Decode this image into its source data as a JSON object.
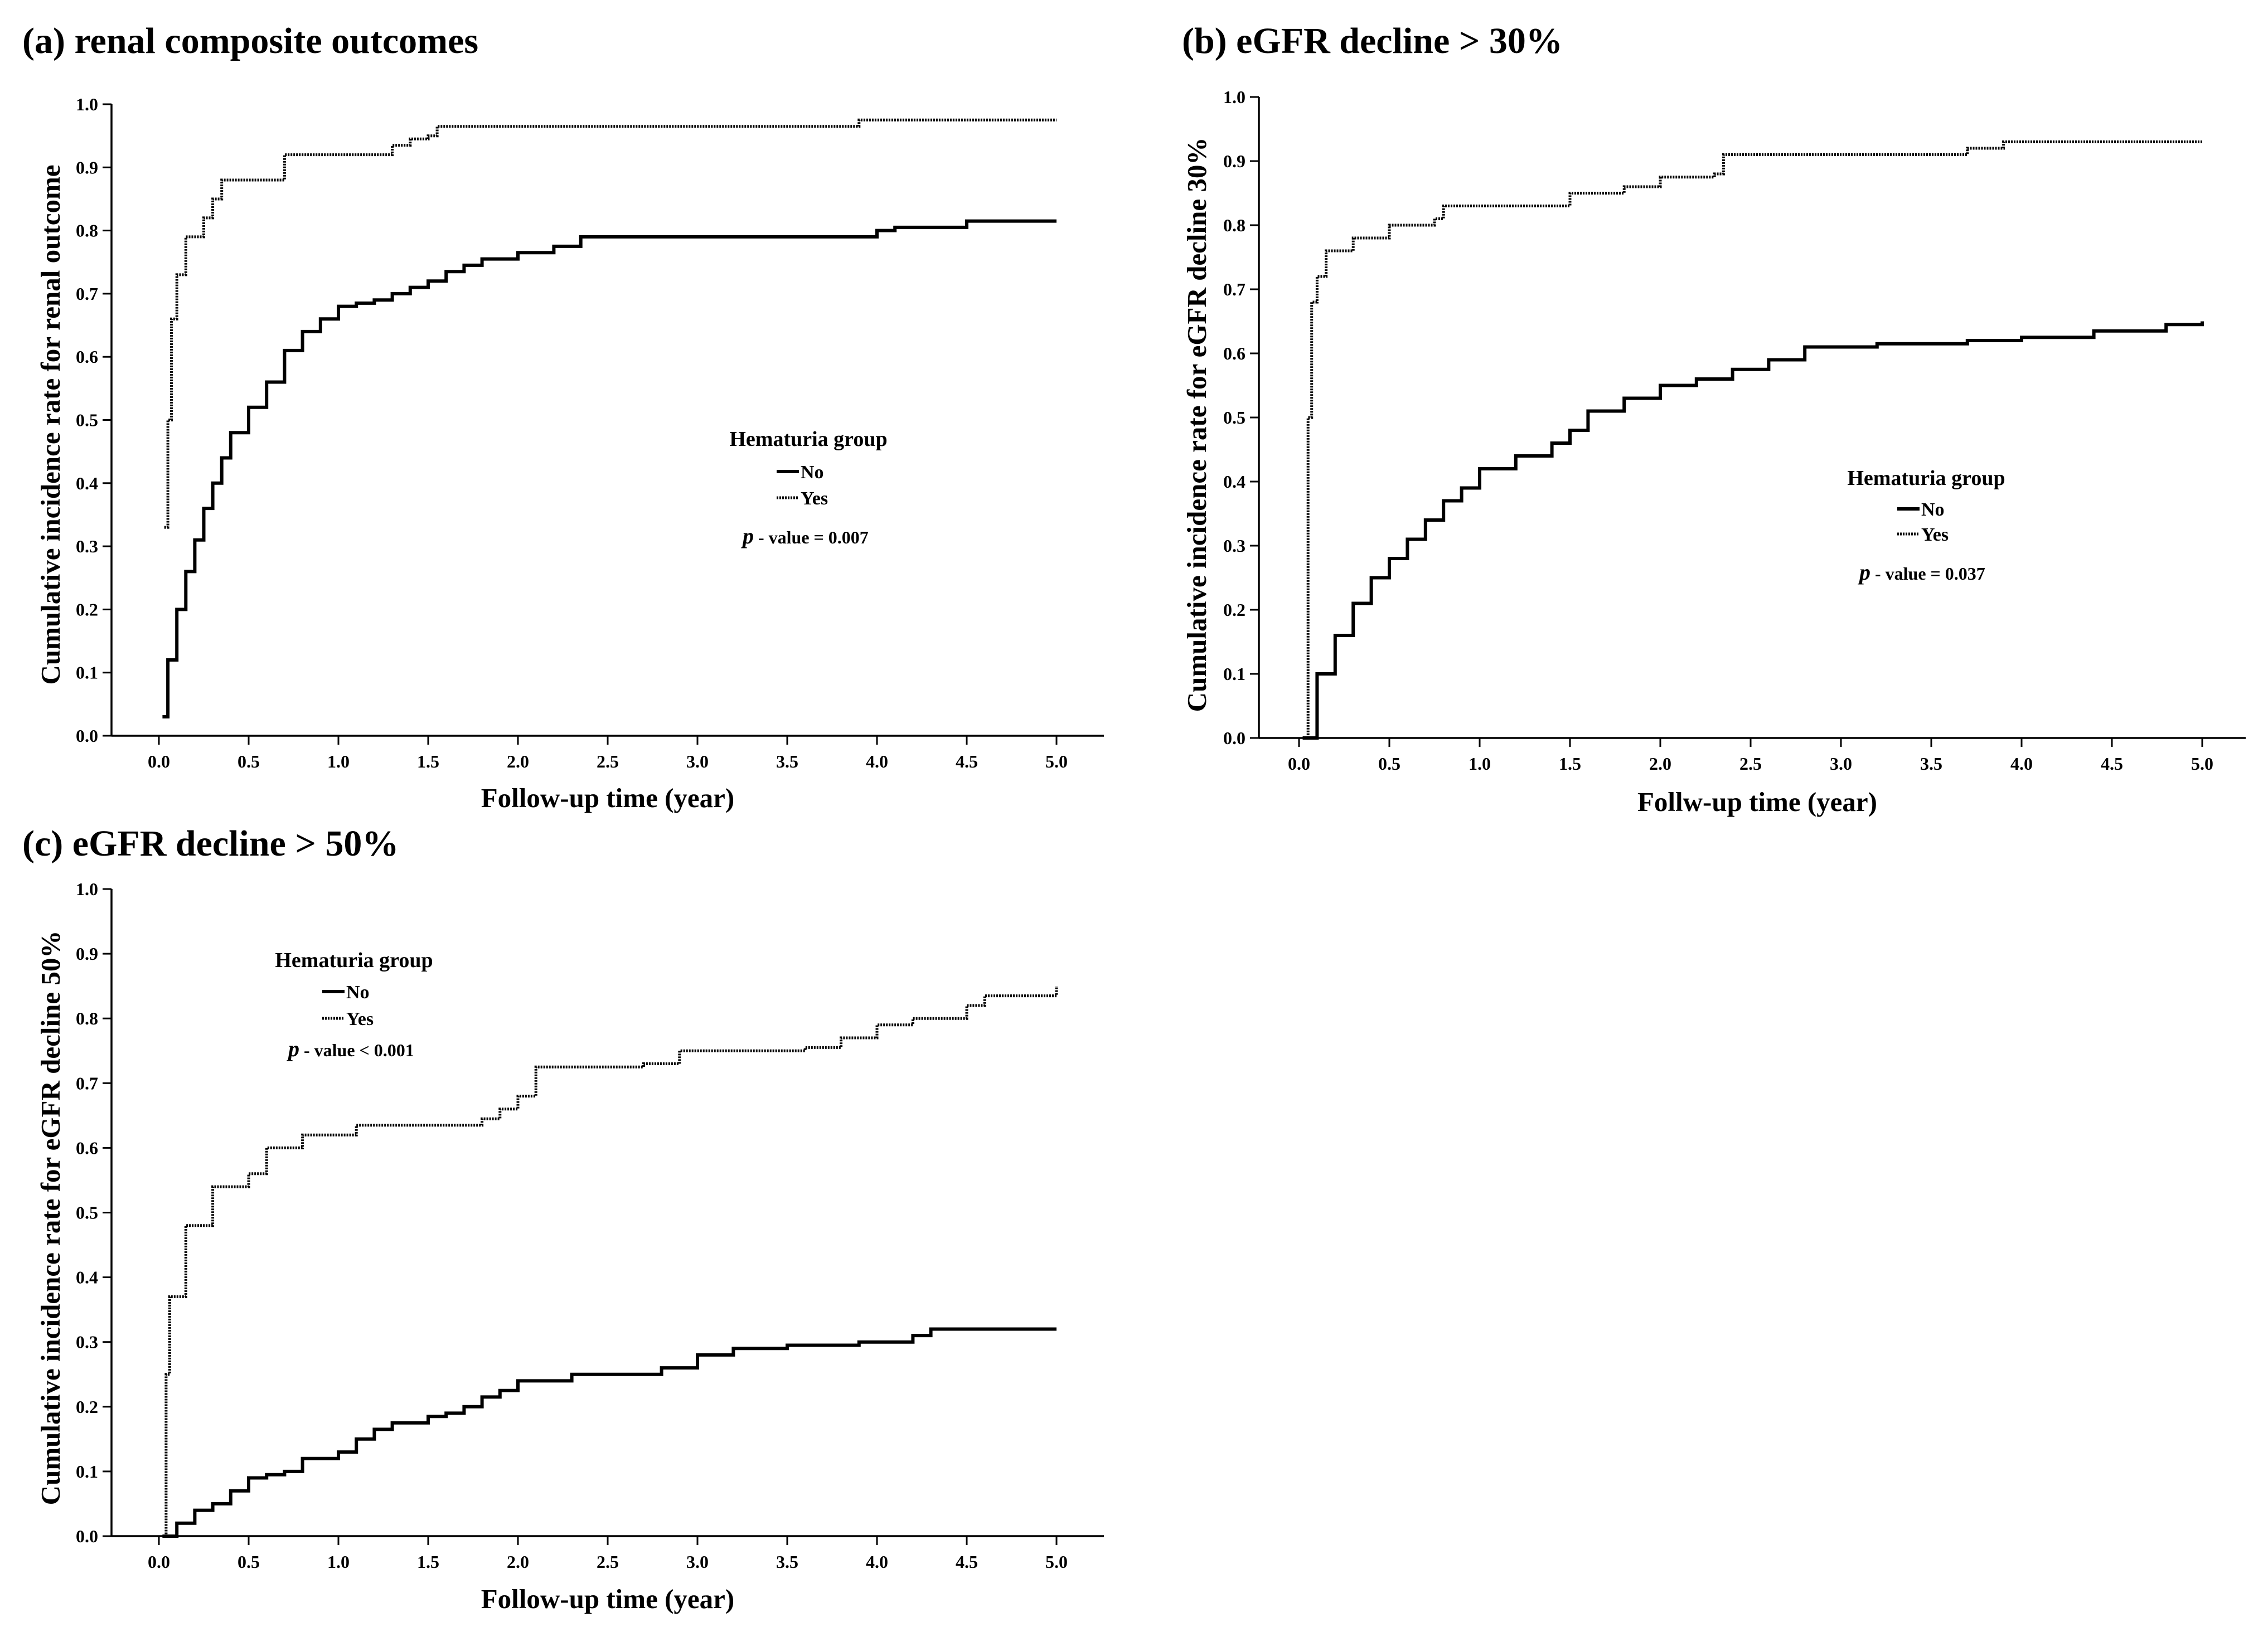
{
  "chart_data": [
    {
      "type": "line",
      "title": "(a) renal composite outcomes",
      "xlabel": "Follow-up time (year)",
      "ylabel": "Cumulative incidence rate for renal outcome",
      "xlim": [
        0,
        5
      ],
      "ylim": [
        0,
        1
      ],
      "xticks": [
        "0.0",
        "0.5",
        "1.0",
        "1.5",
        "2.0",
        "2.5",
        "3.0",
        "3.5",
        "4.0",
        "4.5",
        "5.0"
      ],
      "yticks": [
        "0.0",
        "0.1",
        "0.2",
        "0.3",
        "0.4",
        "0.5",
        "0.6",
        "0.7",
        "0.8",
        "0.9",
        "1.0"
      ],
      "legend": {
        "title": "Hematuria group",
        "entries": [
          "No",
          "Yes"
        ],
        "p_prefix": "p",
        "p_text": " - value = 0.007"
      },
      "series": [
        {
          "name": "No",
          "style": "solid",
          "x": [
            0.02,
            0.05,
            0.1,
            0.15,
            0.2,
            0.25,
            0.3,
            0.35,
            0.4,
            0.5,
            0.6,
            0.7,
            0.8,
            0.9,
            1.0,
            1.1,
            1.2,
            1.3,
            1.4,
            1.5,
            1.6,
            1.7,
            1.8,
            2.0,
            2.2,
            2.35,
            2.5,
            3.0,
            3.5,
            3.9,
            4.0,
            4.1,
            4.5,
            5.0
          ],
          "values": [
            0.03,
            0.12,
            0.2,
            0.26,
            0.31,
            0.36,
            0.4,
            0.44,
            0.48,
            0.52,
            0.56,
            0.61,
            0.64,
            0.66,
            0.68,
            0.685,
            0.69,
            0.7,
            0.71,
            0.72,
            0.735,
            0.745,
            0.755,
            0.765,
            0.775,
            0.79,
            0.79,
            0.79,
            0.79,
            0.79,
            0.8,
            0.805,
            0.815,
            0.815
          ]
        },
        {
          "name": "Yes",
          "style": "dotted",
          "x": [
            0.03,
            0.05,
            0.07,
            0.1,
            0.15,
            0.25,
            0.3,
            0.35,
            0.5,
            0.65,
            0.7,
            1.2,
            1.3,
            1.4,
            1.5,
            1.55,
            3.8,
            3.9,
            5.0
          ],
          "values": [
            0.33,
            0.5,
            0.66,
            0.73,
            0.79,
            0.82,
            0.85,
            0.88,
            0.88,
            0.88,
            0.92,
            0.92,
            0.935,
            0.945,
            0.95,
            0.965,
            0.965,
            0.975,
            0.975
          ]
        }
      ]
    },
    {
      "type": "line",
      "title": "(b) eGFR decline > 30%",
      "xlabel": "Follw-up time (year)",
      "ylabel": "Cumulative incidence rate for eGFR decline 30%",
      "xlim": [
        0,
        5
      ],
      "ylim": [
        0,
        1
      ],
      "xticks": [
        "0.0",
        "0.5",
        "1.0",
        "1.5",
        "2.0",
        "2.5",
        "3.0",
        "3.5",
        "4.0",
        "4.5",
        "5.0"
      ],
      "yticks": [
        "0.0",
        "0.1",
        "0.2",
        "0.3",
        "0.4",
        "0.5",
        "0.6",
        "0.7",
        "0.8",
        "0.9",
        "1.0"
      ],
      "legend": {
        "title": "Hematuria group",
        "entries": [
          "No",
          "Yes"
        ],
        "p_prefix": "p",
        "p_text": " - value = 0.037"
      },
      "series": [
        {
          "name": "No",
          "style": "solid",
          "x": [
            0.02,
            0.1,
            0.2,
            0.3,
            0.4,
            0.5,
            0.6,
            0.7,
            0.8,
            0.9,
            1.0,
            1.2,
            1.4,
            1.5,
            1.6,
            1.8,
            2.0,
            2.2,
            2.4,
            2.6,
            2.8,
            3.0,
            3.2,
            3.5,
            3.7,
            4.0,
            4.4,
            4.8,
            5.0
          ],
          "values": [
            0.0,
            0.1,
            0.16,
            0.21,
            0.25,
            0.28,
            0.31,
            0.34,
            0.37,
            0.39,
            0.42,
            0.44,
            0.46,
            0.48,
            0.51,
            0.53,
            0.55,
            0.56,
            0.575,
            0.59,
            0.61,
            0.61,
            0.615,
            0.615,
            0.62,
            0.625,
            0.635,
            0.645,
            0.65
          ]
        },
        {
          "name": "Yes",
          "style": "dotted",
          "x": [
            0.02,
            0.05,
            0.07,
            0.1,
            0.15,
            0.3,
            0.5,
            0.75,
            0.8,
            1.3,
            1.5,
            1.8,
            2.0,
            2.3,
            2.35,
            3.0,
            3.7,
            3.9,
            5.0
          ],
          "values": [
            0.0,
            0.5,
            0.68,
            0.72,
            0.76,
            0.78,
            0.8,
            0.81,
            0.83,
            0.83,
            0.85,
            0.86,
            0.875,
            0.88,
            0.91,
            0.91,
            0.92,
            0.93,
            0.93
          ]
        }
      ]
    },
    {
      "type": "line",
      "title": "(c) eGFR decline > 50%",
      "xlabel": "Follow-up time (year)",
      "ylabel": "Cumulative incidence rate for eGFR decline 50%",
      "xlim": [
        0,
        5
      ],
      "ylim": [
        0,
        1
      ],
      "xticks": [
        "0.0",
        "0.5",
        "1.0",
        "1.5",
        "2.0",
        "2.5",
        "3.0",
        "3.5",
        "4.0",
        "4.5",
        "5.0"
      ],
      "yticks": [
        "0.0",
        "0.1",
        "0.2",
        "0.3",
        "0.4",
        "0.5",
        "0.6",
        "0.7",
        "0.8",
        "0.9",
        "1.0"
      ],
      "legend": {
        "title": "Hematuria group",
        "entries": [
          "No",
          "Yes"
        ],
        "p_prefix": "p",
        "p_text": " - value < 0.001"
      },
      "series": [
        {
          "name": "No",
          "style": "solid",
          "x": [
            0.02,
            0.1,
            0.2,
            0.3,
            0.4,
            0.5,
            0.6,
            0.7,
            0.8,
            1.0,
            1.1,
            1.2,
            1.3,
            1.5,
            1.6,
            1.7,
            1.8,
            1.9,
            2.0,
            2.3,
            2.8,
            3.0,
            3.2,
            3.5,
            3.9,
            4.2,
            4.3,
            5.0
          ],
          "values": [
            0.0,
            0.02,
            0.04,
            0.05,
            0.07,
            0.09,
            0.095,
            0.1,
            0.12,
            0.13,
            0.15,
            0.165,
            0.175,
            0.185,
            0.19,
            0.2,
            0.215,
            0.225,
            0.24,
            0.25,
            0.26,
            0.28,
            0.29,
            0.295,
            0.3,
            0.31,
            0.32,
            0.32
          ]
        },
        {
          "name": "Yes",
          "style": "dotted",
          "x": [
            0.02,
            0.04,
            0.06,
            0.15,
            0.3,
            0.4,
            0.5,
            0.6,
            0.8,
            1.1,
            1.8,
            1.9,
            2.0,
            2.1,
            2.7,
            2.9,
            3.6,
            3.8,
            4.0,
            4.2,
            4.5,
            4.6,
            4.95,
            5.0
          ],
          "values": [
            0.0,
            0.25,
            0.37,
            0.48,
            0.54,
            0.54,
            0.56,
            0.6,
            0.62,
            0.635,
            0.645,
            0.66,
            0.68,
            0.725,
            0.73,
            0.75,
            0.755,
            0.77,
            0.79,
            0.8,
            0.82,
            0.835,
            0.835,
            0.85
          ]
        }
      ]
    }
  ]
}
